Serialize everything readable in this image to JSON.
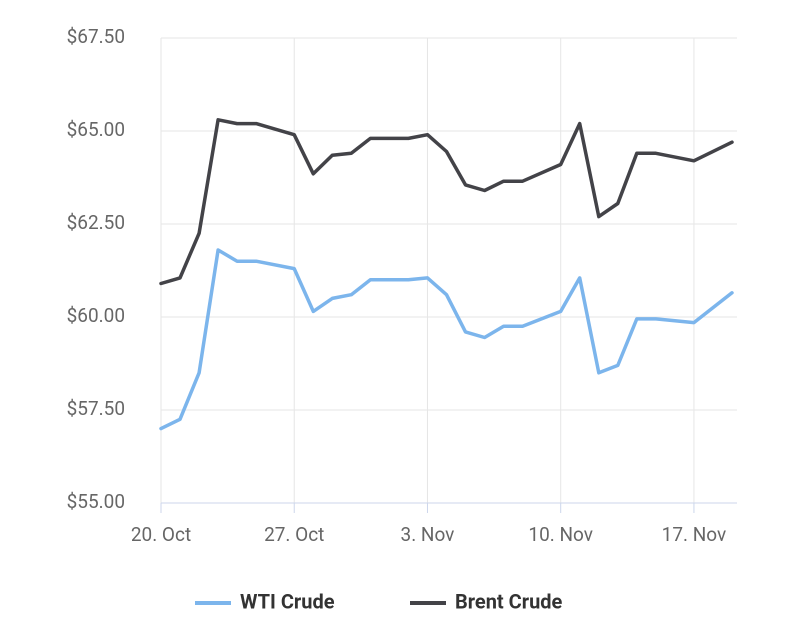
{
  "chart_data": {
    "type": "line",
    "x": [
      "20. Oct",
      "21. Oct",
      "22. Oct",
      "23. Oct",
      "24. Oct",
      "25. Oct",
      "27. Oct",
      "28. Oct",
      "29. Oct",
      "30. Oct",
      "31. Oct",
      "2. Nov",
      "3. Nov",
      "4. Nov",
      "5. Nov",
      "6. Nov",
      "7. Nov",
      "8. Nov",
      "10. Nov",
      "11. Nov",
      "12. Nov",
      "13. Nov",
      "14. Nov",
      "15. Nov",
      "17. Nov",
      "19. Nov"
    ],
    "series": [
      {
        "name": "WTI Crude",
        "color": "#7cb5ec",
        "values": [
          57.0,
          57.25,
          58.5,
          61.8,
          61.5,
          61.5,
          61.3,
          60.15,
          60.5,
          60.6,
          61.0,
          61.0,
          61.05,
          60.6,
          59.6,
          59.45,
          59.75,
          59.75,
          60.15,
          61.05,
          58.5,
          58.7,
          59.95,
          59.95,
          59.85,
          60.65
        ]
      },
      {
        "name": "Brent Crude",
        "color": "#434348",
        "values": [
          60.9,
          61.05,
          62.25,
          65.3,
          65.2,
          65.2,
          64.9,
          63.85,
          64.35,
          64.4,
          64.8,
          64.8,
          64.9,
          64.45,
          63.55,
          63.4,
          63.65,
          63.65,
          64.1,
          65.2,
          62.7,
          63.05,
          64.4,
          64.4,
          64.2,
          64.7
        ]
      }
    ],
    "xlim": [
      "20. Oct",
      "19. Nov"
    ],
    "xticks": [
      "20. Oct",
      "27. Oct",
      "3. Nov",
      "10. Nov",
      "17. Nov"
    ],
    "ylim": [
      55,
      67.5
    ],
    "yticks": [
      {
        "value": 55,
        "label": "$55.00"
      },
      {
        "value": 57.5,
        "label": "$57.50"
      },
      {
        "value": 60,
        "label": "$60.00"
      },
      {
        "value": 62.5,
        "label": "$62.50"
      },
      {
        "value": 65,
        "label": "$65.00"
      },
      {
        "value": 67.5,
        "label": "$67.50"
      }
    ],
    "grid": true,
    "legend": "bottom"
  }
}
